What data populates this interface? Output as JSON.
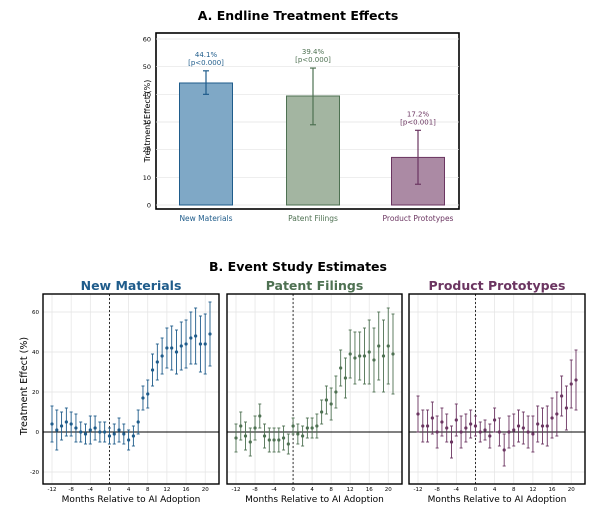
{
  "chart_data": [
    {
      "type": "bar",
      "title": "A. Endline Treatment Effects",
      "ylabel": "Treatment Effect (%)",
      "ylim": [
        0,
        62
      ],
      "yticks": [
        0,
        10,
        20,
        30,
        40,
        50,
        60
      ],
      "grid": true,
      "categories": [
        "New Materials",
        "Patent Filings",
        "Product Prototypes"
      ],
      "values": [
        44.1,
        39.4,
        17.2
      ],
      "ci_low": [
        40.0,
        29.0,
        7.5
      ],
      "ci_high": [
        48.5,
        49.5,
        27.0
      ],
      "value_labels": [
        "44.1%",
        "39.4%",
        "17.2%"
      ],
      "p_labels": [
        "[p<0.000]",
        "[p<0.000]",
        "[p<0.001]"
      ],
      "colors": [
        "#1f5c8b",
        "#4e7152",
        "#6b3561"
      ],
      "fill_colors": [
        "#7fa8c6",
        "#a3b5a1",
        "#ab8aa4"
      ]
    },
    {
      "type": "scatter",
      "title": "B. Event Study Estimates",
      "ylabel": "Treatment Effect (%)",
      "xlabel": "Months Relative to AI Adoption",
      "xlim": [
        -13,
        22
      ],
      "ylim": [
        -25,
        68
      ],
      "xticks": [
        -12,
        -8,
        -4,
        0,
        4,
        8,
        12,
        16,
        20
      ],
      "yticks": [
        -20,
        0,
        20,
        40,
        60
      ],
      "grid": true,
      "reference_lines": {
        "vertical_x": 0,
        "horizontal_y": 0
      },
      "x": [
        -12,
        -11,
        -10,
        -9,
        -8,
        -7,
        -6,
        -5,
        -4,
        -3,
        -2,
        -1,
        0,
        1,
        2,
        3,
        4,
        5,
        6,
        7,
        8,
        9,
        10,
        11,
        12,
        13,
        14,
        15,
        16,
        17,
        18,
        19,
        20,
        21
      ],
      "series": [
        {
          "name": "New Materials",
          "color": "#1f5c8b",
          "values": [
            4,
            1,
            3,
            5,
            4,
            2,
            0,
            -1,
            1,
            2,
            0,
            0,
            -2,
            -1,
            1,
            -1,
            -4,
            -2,
            5,
            17,
            19,
            31,
            35,
            38,
            42,
            42,
            40,
            43,
            44,
            47,
            48,
            44,
            44,
            49
          ],
          "ci": [
            9,
            10,
            7,
            7,
            6,
            7,
            5,
            5,
            7,
            6,
            5,
            5,
            4,
            5,
            6,
            5,
            5,
            5,
            6,
            6,
            7,
            8,
            9,
            9,
            10,
            11,
            11,
            12,
            12,
            13,
            14,
            14,
            15,
            16
          ]
        },
        {
          "name": "Patent Filings",
          "color": "#4e7152",
          "values": [
            -3,
            3,
            -2,
            -5,
            2,
            8,
            -2,
            -4,
            -4,
            -4,
            -3,
            -6,
            3,
            -1,
            -2,
            2,
            2,
            3,
            10,
            16,
            14,
            20,
            32,
            27,
            39,
            37,
            38,
            38,
            40,
            36,
            43,
            38,
            43,
            39
          ],
          "ci": [
            7,
            7,
            7,
            7,
            6,
            6,
            6,
            6,
            6,
            6,
            6,
            5,
            4,
            5,
            5,
            5,
            5,
            6,
            6,
            7,
            8,
            8,
            9,
            10,
            12,
            13,
            12,
            14,
            16,
            16,
            17,
            18,
            19,
            20
          ]
        },
        {
          "name": "Product Prototypes",
          "color": "#6b3561",
          "values": [
            9,
            3,
            3,
            7,
            0,
            5,
            2,
            -5,
            6,
            0,
            2,
            4,
            3,
            0,
            1,
            -2,
            6,
            0,
            -9,
            0,
            1,
            3,
            2,
            0,
            -1,
            4,
            3,
            3,
            7,
            9,
            18,
            12,
            24,
            26
          ],
          "ci": [
            9,
            8,
            8,
            8,
            8,
            7,
            7,
            8,
            8,
            8,
            7,
            7,
            5,
            5,
            5,
            6,
            6,
            7,
            8,
            8,
            8,
            8,
            8,
            8,
            9,
            9,
            9,
            10,
            10,
            11,
            10,
            11,
            12,
            15
          ]
        }
      ]
    }
  ]
}
